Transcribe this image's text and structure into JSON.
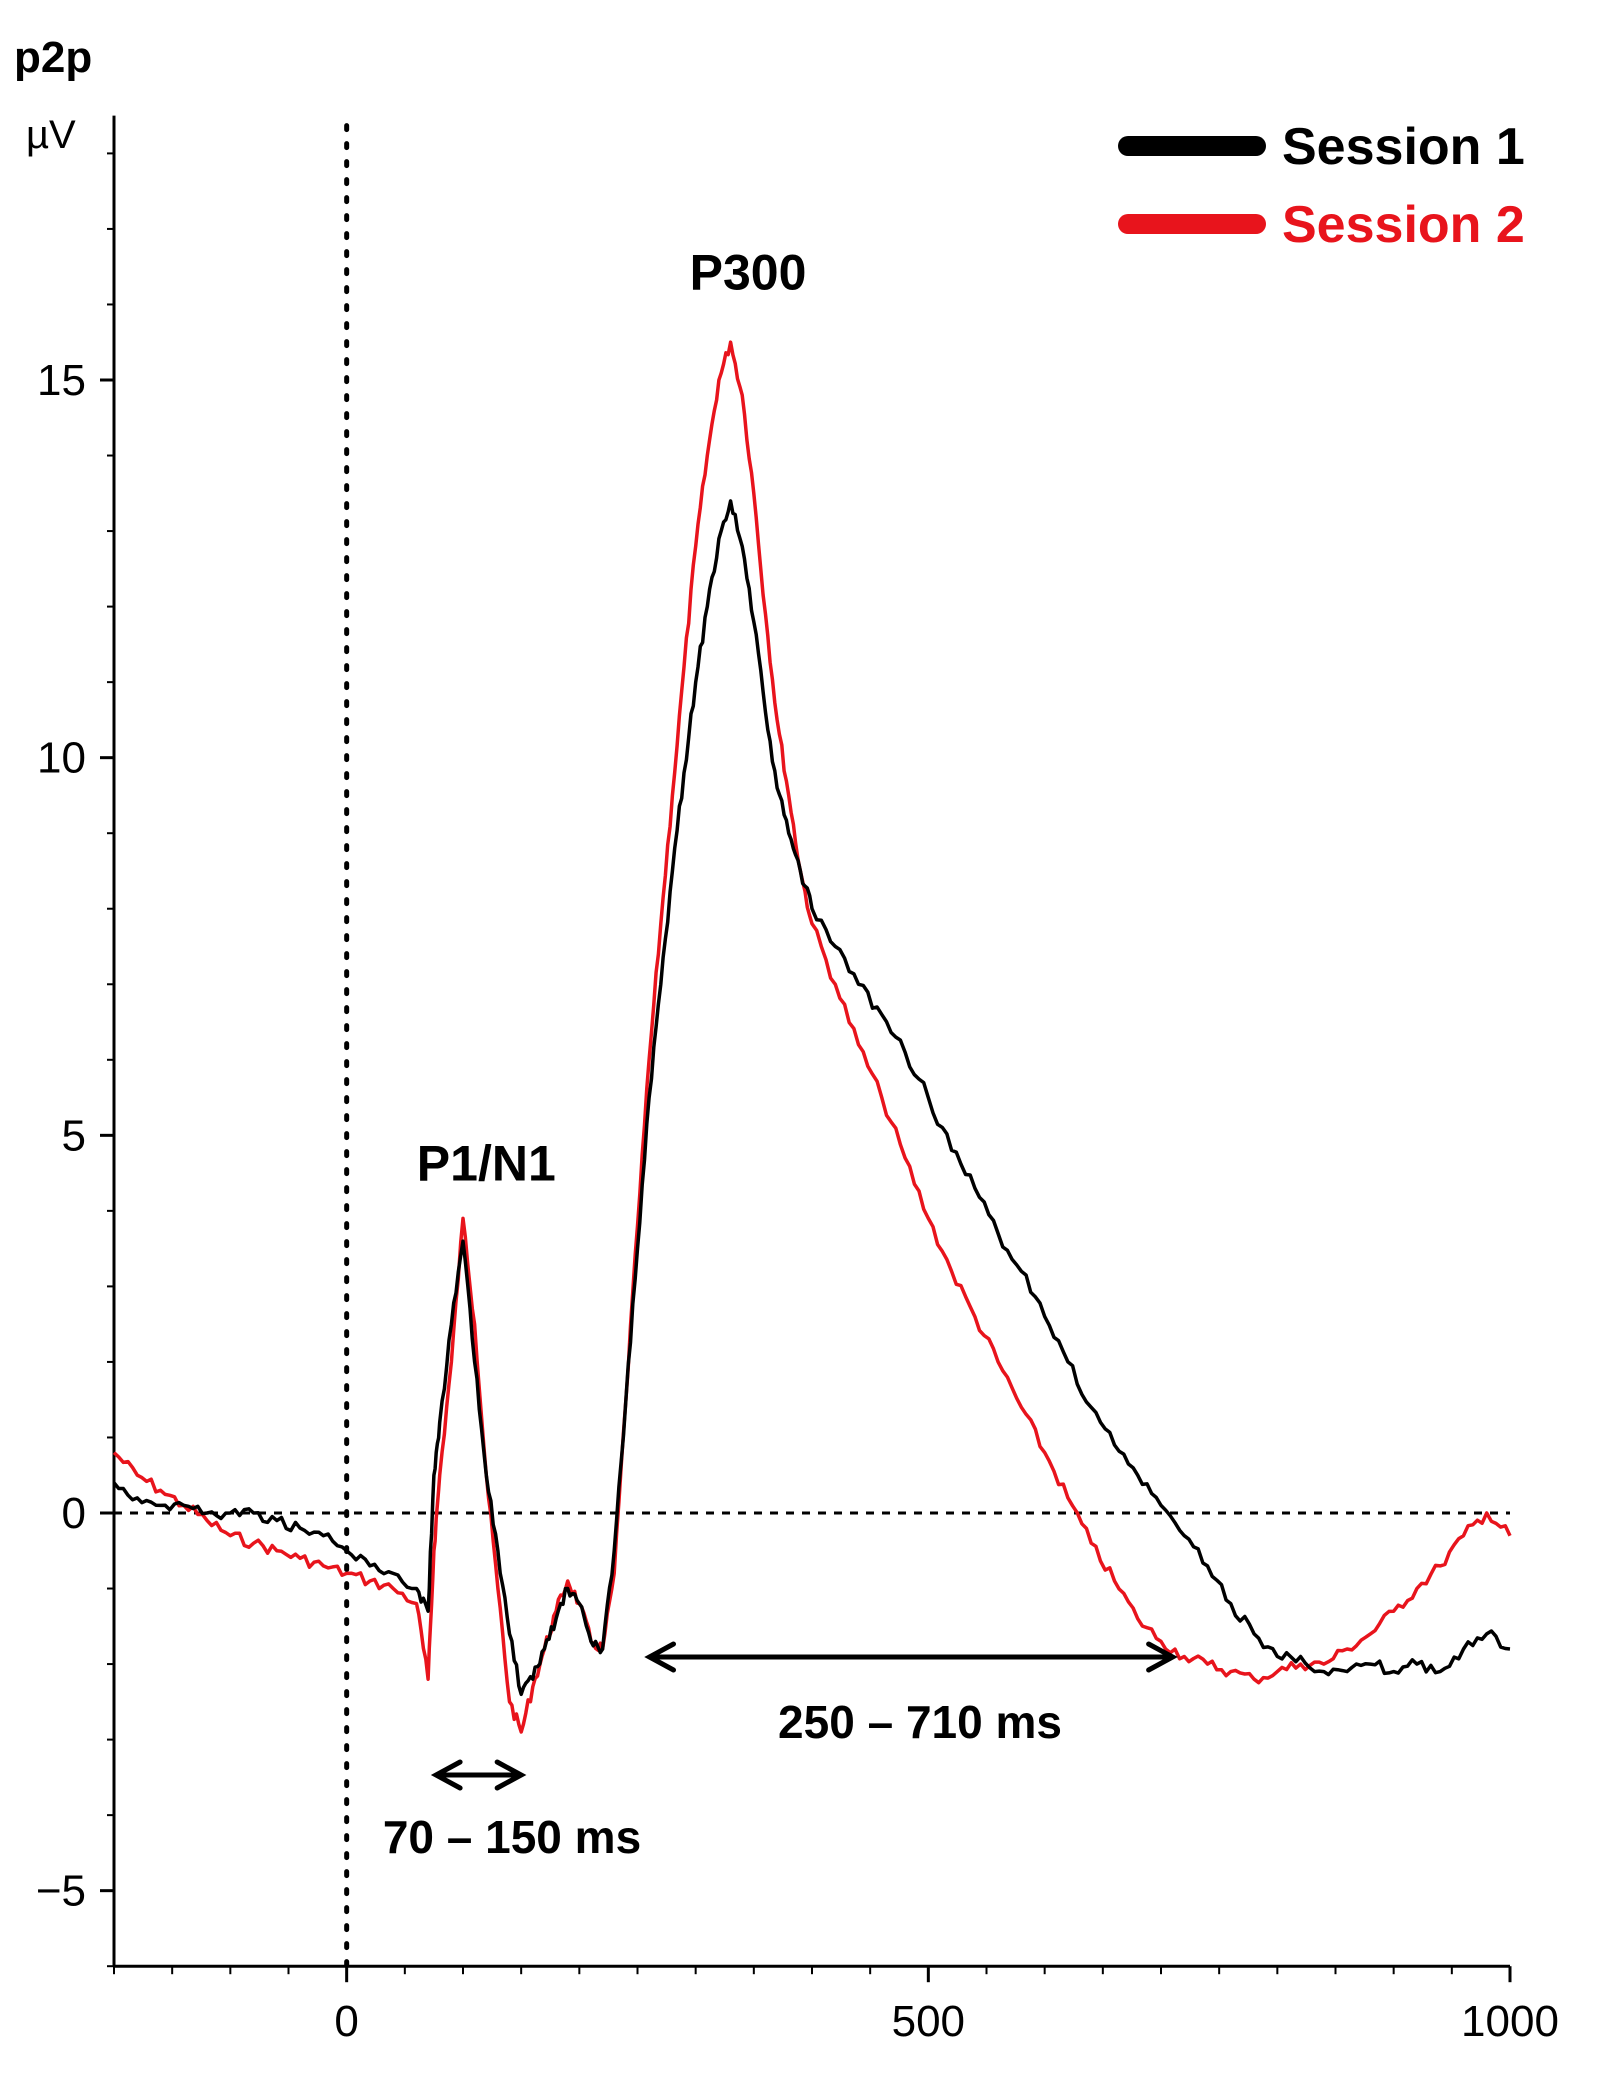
{
  "chart_data": {
    "type": "line",
    "title": "p2p",
    "ylabel": "µV",
    "xlabel": "",
    "xlim": [
      -200,
      1000
    ],
    "ylim": [
      -6,
      18.5
    ],
    "xticks": [
      0,
      500,
      1000
    ],
    "xtick_labels": [
      "0",
      "500",
      "1000"
    ],
    "yticks": [
      -5,
      0,
      5,
      10,
      15
    ],
    "ytick_labels": [
      "−5",
      "0",
      "5",
      "10",
      "15"
    ],
    "grid": false,
    "legend_position": "top-right",
    "reference_lines": {
      "x0": 0,
      "y0": 0,
      "style": "dotted"
    },
    "series": [
      {
        "name": "Session 1",
        "color": "#000000",
        "x": [
          -200,
          -180,
          -160,
          -140,
          -120,
          -100,
          -80,
          -60,
          -40,
          -20,
          0,
          20,
          40,
          60,
          70,
          75,
          80,
          90,
          100,
          110,
          120,
          130,
          140,
          150,
          160,
          170,
          180,
          190,
          200,
          210,
          220,
          230,
          240,
          250,
          260,
          270,
          280,
          290,
          300,
          310,
          320,
          330,
          340,
          350,
          360,
          370,
          380,
          390,
          400,
          420,
          440,
          460,
          480,
          500,
          520,
          540,
          560,
          580,
          600,
          620,
          640,
          660,
          680,
          700,
          720,
          740,
          760,
          780,
          800,
          820,
          840,
          860,
          880,
          900,
          920,
          940,
          960,
          980,
          1000
        ],
        "y": [
          0.4,
          0.2,
          0.1,
          0.1,
          0.0,
          0.0,
          0.0,
          -0.1,
          -0.2,
          -0.3,
          -0.5,
          -0.7,
          -0.8,
          -1.0,
          -1.3,
          0.5,
          1.2,
          2.5,
          3.6,
          2.0,
          0.5,
          -0.5,
          -1.6,
          -2.4,
          -2.2,
          -1.8,
          -1.4,
          -1.0,
          -1.2,
          -1.7,
          -1.8,
          -0.5,
          1.5,
          3.5,
          5.5,
          7.0,
          8.5,
          9.8,
          11.0,
          12.0,
          12.9,
          13.4,
          12.8,
          11.8,
          10.6,
          9.6,
          9.0,
          8.5,
          8.0,
          7.5,
          7.0,
          6.6,
          6.1,
          5.5,
          4.8,
          4.3,
          3.7,
          3.2,
          2.6,
          2.0,
          1.4,
          0.9,
          0.5,
          0.1,
          -0.3,
          -0.7,
          -1.2,
          -1.6,
          -1.9,
          -1.9,
          -2.1,
          -2.1,
          -2.0,
          -2.1,
          -2.0,
          -2.1,
          -1.8,
          -1.6,
          -1.8
        ]
      },
      {
        "name": "Session 2",
        "color": "#e8141c",
        "x": [
          -200,
          -180,
          -160,
          -140,
          -120,
          -100,
          -80,
          -60,
          -40,
          -20,
          0,
          20,
          40,
          60,
          70,
          75,
          80,
          90,
          100,
          110,
          120,
          130,
          140,
          150,
          160,
          170,
          180,
          190,
          200,
          210,
          220,
          230,
          240,
          250,
          260,
          270,
          280,
          290,
          300,
          310,
          320,
          330,
          340,
          350,
          360,
          370,
          380,
          390,
          400,
          420,
          440,
          460,
          480,
          500,
          520,
          540,
          560,
          580,
          600,
          620,
          640,
          660,
          680,
          700,
          720,
          740,
          760,
          780,
          800,
          820,
          840,
          860,
          880,
          900,
          920,
          940,
          960,
          980,
          1000
        ],
        "y": [
          0.8,
          0.5,
          0.3,
          0.1,
          -0.1,
          -0.3,
          -0.4,
          -0.5,
          -0.6,
          -0.7,
          -0.8,
          -0.9,
          -1.0,
          -1.2,
          -2.2,
          -0.5,
          0.5,
          2.0,
          3.9,
          2.5,
          0.5,
          -1.0,
          -2.5,
          -2.9,
          -2.3,
          -1.8,
          -1.3,
          -0.9,
          -1.2,
          -1.7,
          -1.8,
          -0.8,
          1.5,
          3.8,
          6.0,
          7.8,
          9.5,
          11.2,
          12.8,
          14.0,
          15.0,
          15.5,
          14.8,
          13.5,
          11.9,
          10.5,
          9.5,
          8.5,
          7.8,
          7.0,
          6.2,
          5.5,
          4.7,
          3.9,
          3.2,
          2.6,
          2.0,
          1.4,
          0.8,
          0.2,
          -0.4,
          -0.9,
          -1.4,
          -1.7,
          -1.9,
          -2.0,
          -2.1,
          -2.2,
          -2.1,
          -2.0,
          -2.0,
          -1.8,
          -1.6,
          -1.3,
          -1.0,
          -0.7,
          -0.3,
          0.0,
          -0.3
        ]
      }
    ],
    "annotations": [
      {
        "text": "P300",
        "x": 345,
        "y": 16.2
      },
      {
        "text": "P1/N1",
        "x": 120,
        "y": 4.4
      }
    ],
    "ranges": [
      {
        "label": "70 – 150 ms",
        "from": 70,
        "to": 150
      },
      {
        "label": "250 – 710 ms",
        "from": 250,
        "to": 710
      }
    ]
  }
}
